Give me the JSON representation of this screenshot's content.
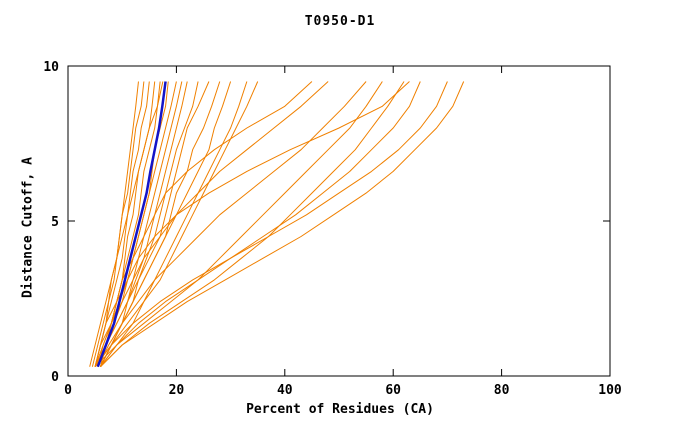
{
  "colors": {
    "orange": "#f08000",
    "blue": "#1414c8",
    "frame": "#000000"
  },
  "chart_data": {
    "type": "line",
    "title": "T0950-D1",
    "xlabel": "Percent of Residues (CA)",
    "ylabel": "Distance Cutoff, A",
    "xlim": [
      0,
      100
    ],
    "ylim": [
      0,
      10
    ],
    "xticks": [
      0,
      20,
      40,
      60,
      80,
      100
    ],
    "yticks": [
      0,
      5,
      10
    ],
    "grid": false,
    "legend": "none",
    "y_common": [
      0.3,
      1.0,
      1.7,
      2.4,
      3.1,
      3.8,
      4.5,
      5.2,
      5.9,
      6.6,
      7.3,
      8.0,
      8.7,
      9.5
    ],
    "orange_series_x": [
      [
        5,
        6,
        7,
        7.5,
        8,
        9,
        9.5,
        10,
        10.5,
        11,
        11.5,
        12,
        12.5,
        13
      ],
      [
        4.5,
        5.5,
        6.5,
        7.5,
        8.5,
        9,
        9.5,
        10,
        11,
        11.5,
        12,
        12.5,
        13.5,
        14
      ],
      [
        5,
        6,
        7,
        8,
        9,
        10,
        10.5,
        11,
        11.5,
        12,
        13,
        13.5,
        14.5,
        15
      ],
      [
        6,
        7,
        8,
        9,
        10,
        10.5,
        11,
        12,
        12.5,
        13,
        14,
        15,
        15.5,
        16
      ],
      [
        5.5,
        6.5,
        8,
        9,
        10,
        11,
        12,
        13,
        13.5,
        14,
        15,
        16,
        16.5,
        17
      ],
      [
        4,
        5,
        6,
        7,
        8,
        9,
        10,
        11,
        12,
        13,
        14,
        15,
        16.5,
        17.5
      ],
      [
        6,
        7,
        8.5,
        10,
        11,
        12,
        13,
        14,
        15,
        15.5,
        16,
        17,
        18,
        18.5
      ],
      [
        5,
        6.5,
        8,
        9.5,
        11,
        12,
        13,
        14,
        15,
        16,
        17,
        18,
        19,
        20
      ],
      [
        6,
        8,
        10,
        11,
        12,
        13,
        14,
        15,
        16,
        17,
        18,
        19,
        20,
        21
      ],
      [
        5.5,
        7,
        9,
        11,
        12.5,
        14,
        15,
        16,
        17,
        18,
        19,
        20,
        21,
        22
      ],
      [
        6,
        8,
        10,
        12,
        13,
        14.5,
        16,
        17,
        18,
        19,
        20,
        21.5,
        23,
        24
      ],
      [
        5,
        7,
        9,
        11,
        13,
        15,
        17,
        18,
        19,
        20,
        21,
        22,
        24,
        26
      ],
      [
        6,
        8,
        10,
        12,
        14,
        16,
        18,
        19,
        20,
        22,
        23,
        25,
        26.5,
        28
      ],
      [
        5.5,
        7.5,
        10,
        12,
        14,
        16,
        18,
        20,
        22,
        24,
        26,
        27,
        28.5,
        30
      ],
      [
        6,
        9,
        12,
        14,
        16,
        18,
        20,
        22,
        24,
        26,
        28,
        30,
        31.5,
        33
      ],
      [
        5,
        8,
        11,
        14,
        17,
        19,
        21,
        23,
        25,
        27,
        29,
        31,
        33,
        35
      ],
      [
        6,
        7,
        8,
        9,
        10,
        12,
        14,
        16,
        18,
        22,
        27,
        33,
        40,
        45
      ],
      [
        5,
        6,
        8,
        10,
        12,
        14,
        17,
        20,
        24,
        28,
        33,
        38,
        43,
        48
      ],
      [
        6,
        8,
        10,
        13,
        16,
        20,
        24,
        28,
        33,
        38,
        43,
        47,
        51,
        55
      ],
      [
        5,
        9,
        14,
        19,
        24,
        28,
        32,
        36,
        40,
        44,
        48,
        52,
        55,
        58
      ],
      [
        6,
        10,
        15,
        21,
        27,
        32,
        37,
        41,
        45,
        49,
        53,
        56,
        59,
        62
      ],
      [
        5,
        6,
        7,
        9,
        11,
        13,
        16,
        20,
        26,
        33,
        41,
        50,
        58,
        63
      ],
      [
        6,
        9,
        13,
        18,
        24,
        30,
        36,
        42,
        47,
        52,
        56,
        60,
        63,
        65
      ],
      [
        5,
        8,
        12,
        17,
        23,
        30,
        37,
        44,
        50,
        56,
        61,
        65,
        68,
        70
      ],
      [
        6,
        10,
        16,
        22,
        29,
        36,
        43,
        49,
        55,
        60,
        64,
        68,
        71,
        73
      ]
    ],
    "blue_series_x": [
      5.5,
      7,
      8.5,
      9.5,
      10.5,
      11.5,
      12.5,
      13.5,
      14.5,
      15.2,
      16,
      16.8,
      17.4,
      18
    ]
  }
}
